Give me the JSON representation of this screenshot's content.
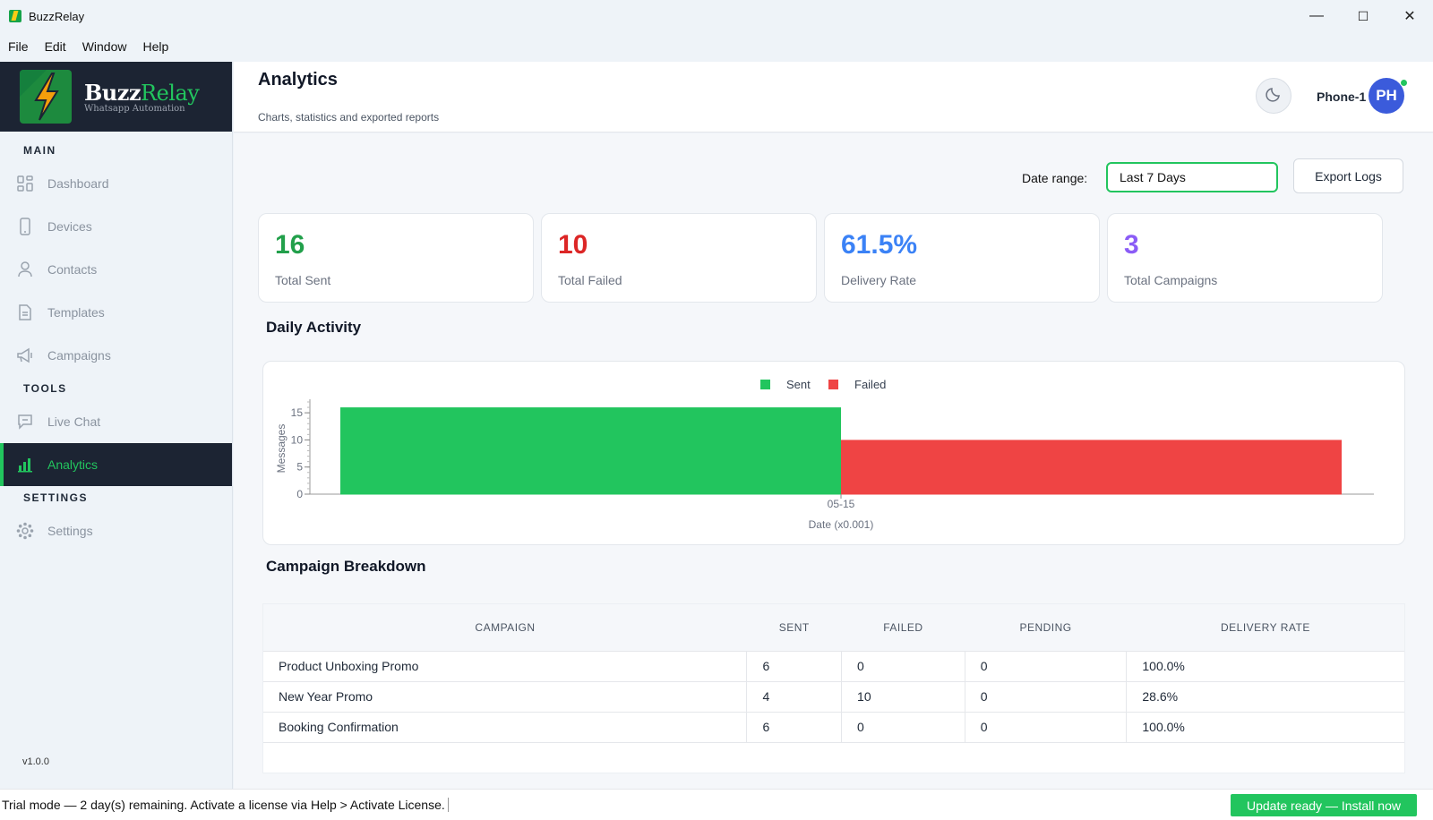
{
  "window": {
    "title": "BuzzRelay",
    "minimize": "—",
    "maximize": "☐",
    "close": "✕"
  },
  "menu": [
    "File",
    "Edit",
    "Window",
    "Help"
  ],
  "brand": {
    "name_a": "Buzz",
    "name_b": "Relay",
    "tagline": "Whatsapp Automation"
  },
  "sidebar": {
    "main_label": "MAIN",
    "tools_label": "TOOLS",
    "settings_label": "SETTINGS",
    "items": [
      {
        "label": "Dashboard",
        "icon": "grid-icon"
      },
      {
        "label": "Devices",
        "icon": "phone-icon"
      },
      {
        "label": "Contacts",
        "icon": "user-icon"
      },
      {
        "label": "Templates",
        "icon": "document-icon"
      },
      {
        "label": "Campaigns",
        "icon": "megaphone-icon"
      },
      {
        "label": "Live Chat",
        "icon": "chat-icon"
      },
      {
        "label": "Analytics",
        "icon": "bar-chart-icon"
      },
      {
        "label": "Settings",
        "icon": "gear-icon"
      }
    ],
    "active": "Analytics",
    "version": "v1.0.0"
  },
  "header": {
    "title": "Analytics",
    "subtitle": "Charts, statistics and exported reports",
    "device": "Phone-1",
    "avatar_initials": "PH"
  },
  "controls": {
    "date_label": "Date range:",
    "date_value": "Last 7 Days",
    "export_label": "Export Logs"
  },
  "stats": [
    {
      "value": "16",
      "label": "Total Sent",
      "color": "#22a04b"
    },
    {
      "value": "10",
      "label": "Total Failed",
      "color": "#dc2626"
    },
    {
      "value": "61.5%",
      "label": "Delivery Rate",
      "color": "#3b82f6"
    },
    {
      "value": "3",
      "label": "Total Campaigns",
      "color": "#8b5cf6"
    }
  ],
  "daily_title": "Daily Activity",
  "chart_data": {
    "type": "bar",
    "categories": [
      "05-15"
    ],
    "series": [
      {
        "name": "Sent",
        "values": [
          16
        ],
        "color": "#22c55e"
      },
      {
        "name": "Failed",
        "values": [
          10
        ],
        "color": "#ef4444"
      }
    ],
    "xlabel": "Date (x0.001)",
    "ylabel": "Messages",
    "ylim": [
      0,
      17
    ],
    "yticks": [
      0,
      5,
      10,
      15
    ],
    "legend": "top-center"
  },
  "breakdown": {
    "title": "Campaign Breakdown",
    "columns": [
      "CAMPAIGN",
      "SENT",
      "FAILED",
      "PENDING",
      "DELIVERY RATE"
    ],
    "rows": [
      [
        "Product Unboxing Promo",
        "6",
        "0",
        "0",
        "100.0%"
      ],
      [
        "New Year Promo",
        "4",
        "10",
        "0",
        "28.6%"
      ],
      [
        "Booking Confirmation",
        "6",
        "0",
        "0",
        "100.0%"
      ]
    ]
  },
  "status": {
    "trial_text": "Trial mode — 2 day(s) remaining. Activate a license via Help > Activate License.",
    "update_label": "Update ready — Install now"
  }
}
